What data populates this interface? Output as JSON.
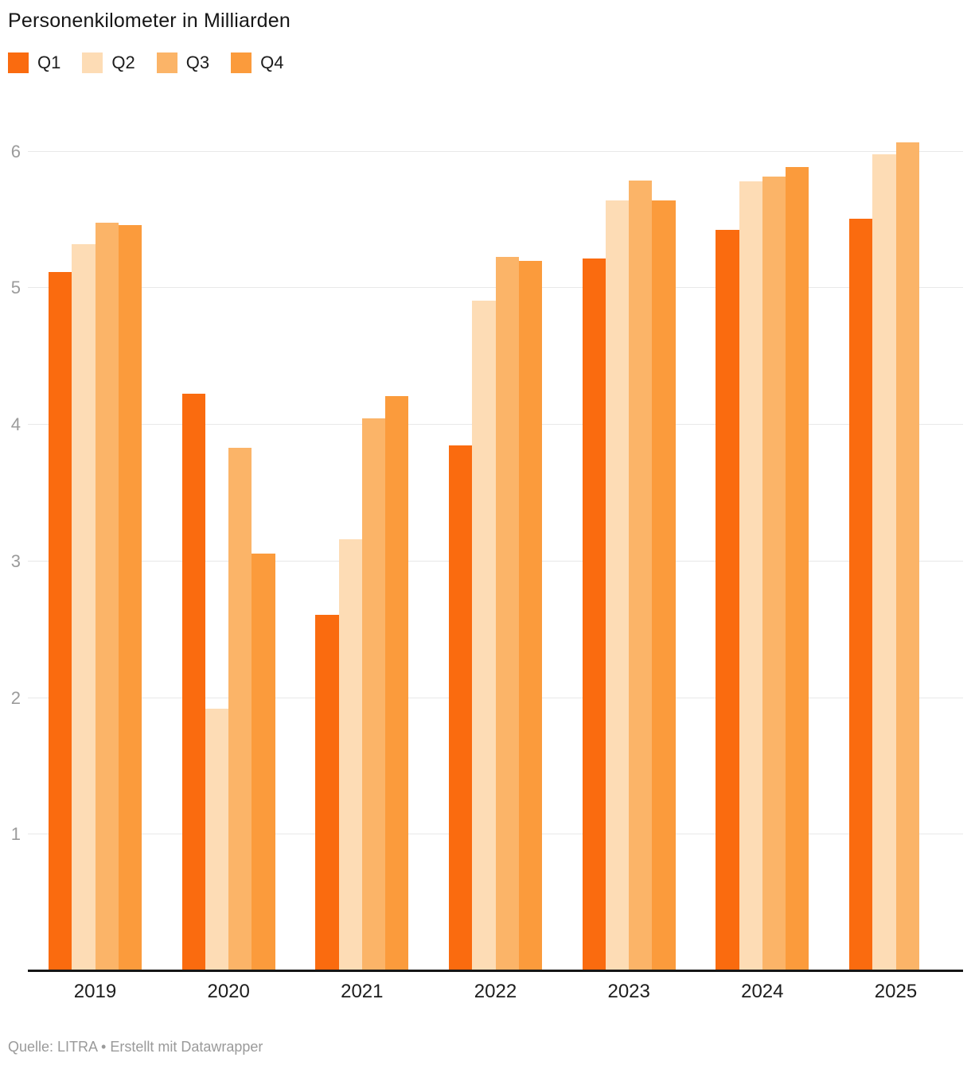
{
  "title": "Personenkilometer in Milliarden",
  "footer": "Quelle: LITRA • Erstellt mit Datawrapper",
  "colors": {
    "q1": "#fa6b0f",
    "q2": "#fddcb5",
    "q3": "#fbb468",
    "q4": "#fb9b3c",
    "gridline": "#e8e8e8",
    "axis": "#161616",
    "tick_text": "#9b9b9b"
  },
  "chart_data": {
    "type": "bar",
    "title": "Personenkilometer in Milliarden",
    "source": "Quelle: LITRA • Erstellt mit Datawrapper",
    "categories": [
      "2019",
      "2020",
      "2021",
      "2022",
      "2023",
      "2024",
      "2025"
    ],
    "series": [
      {
        "name": "Q1",
        "color": "#fa6b0f",
        "values": [
          5.12,
          4.23,
          2.61,
          3.85,
          5.22,
          5.43,
          5.51
        ]
      },
      {
        "name": "Q2",
        "color": "#fddcb5",
        "values": [
          5.32,
          1.92,
          3.16,
          4.91,
          5.64,
          5.78,
          5.98
        ]
      },
      {
        "name": "Q3",
        "color": "#fbb468",
        "values": [
          5.48,
          3.83,
          4.05,
          5.23,
          5.79,
          5.82,
          6.07
        ]
      },
      {
        "name": "Q4",
        "color": "#fb9b3c",
        "values": [
          5.46,
          3.06,
          4.21,
          5.2,
          5.64,
          5.89,
          null
        ]
      }
    ],
    "xlabel": "",
    "ylabel": "",
    "y_ticks": [
      1,
      2,
      3,
      4,
      5,
      6
    ],
    "ylim": [
      0,
      6.12
    ],
    "grid": "horizontal",
    "legend_position": "top"
  }
}
